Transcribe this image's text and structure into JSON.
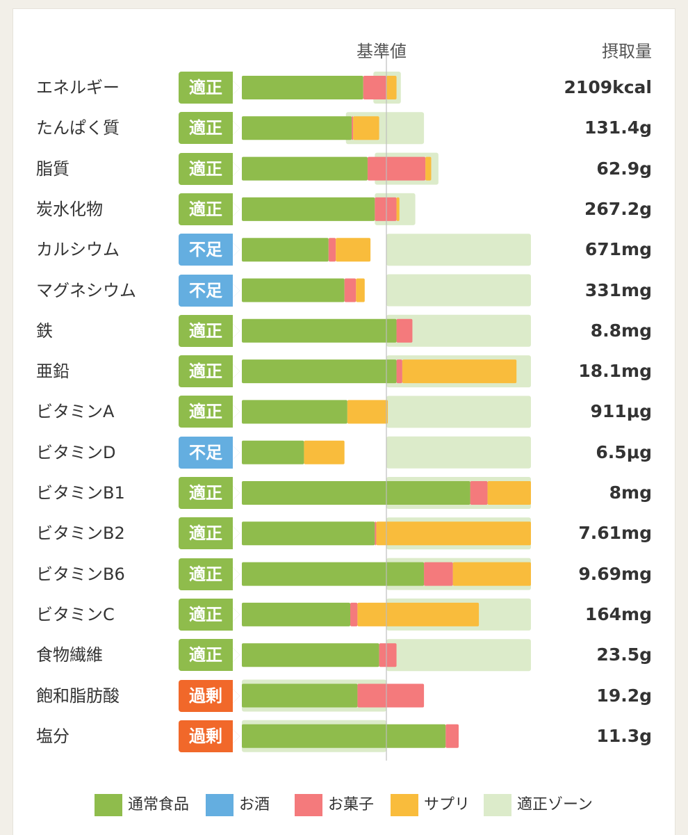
{
  "colors": {
    "normal_food": "#8fbc4c",
    "alcohol": "#64aee0",
    "snacks": "#f47a7c",
    "supplement": "#f9bc3c",
    "proper_zone": "#dcebca",
    "status_proper": "#8fbc4c",
    "status_lacking": "#64aee0",
    "status_excess": "#f1682a"
  },
  "header": {
    "base_label": "基準値",
    "intake_label": "摂取量"
  },
  "legend": [
    {
      "label": "通常食品",
      "color_key": "normal_food"
    },
    {
      "label": "お酒",
      "color_key": "alcohol"
    },
    {
      "label": "お菓子",
      "color_key": "snacks"
    },
    {
      "label": "サプリ",
      "color_key": "supplement"
    },
    {
      "label": "適正ゾーン",
      "color_key": "proper_zone"
    }
  ],
  "chart_data": {
    "type": "bar",
    "orientation": "horizontal",
    "stacked": true,
    "value_unit": "percent of reference value (基準値 = 100)",
    "axis_max": 200,
    "reference_line": 100,
    "series": [
      {
        "name": "通常食品",
        "key": "normal_food"
      },
      {
        "name": "お酒",
        "key": "alcohol"
      },
      {
        "name": "お菓子",
        "key": "snacks"
      },
      {
        "name": "サプリ",
        "key": "supplement"
      }
    ],
    "rows": [
      {
        "label": "エネルギー",
        "status": "適正",
        "status_type": "proper",
        "intake": "2109kcal",
        "values": [
          84,
          0,
          16,
          7
        ],
        "zone": [
          91,
          110
        ]
      },
      {
        "label": "たんぱく質",
        "status": "適正",
        "status_type": "proper",
        "intake": "131.4g",
        "values": [
          76,
          0,
          1,
          18
        ],
        "zone": [
          72,
          126
        ]
      },
      {
        "label": "脂質",
        "status": "適正",
        "status_type": "proper",
        "intake": "62.9g",
        "values": [
          87,
          0,
          40,
          4
        ],
        "zone": [
          92,
          136
        ]
      },
      {
        "label": "炭水化物",
        "status": "適正",
        "status_type": "proper",
        "intake": "267.2g",
        "values": [
          92,
          0,
          15,
          2
        ],
        "zone": [
          92,
          120
        ]
      },
      {
        "label": "カルシウム",
        "status": "不足",
        "status_type": "lacking",
        "intake": "671mg",
        "values": [
          60,
          0,
          5,
          24
        ],
        "zone": [
          100,
          200
        ]
      },
      {
        "label": "マグネシウム",
        "status": "不足",
        "status_type": "lacking",
        "intake": "331mg",
        "values": [
          71,
          0,
          8,
          6
        ],
        "zone": [
          100,
          200
        ]
      },
      {
        "label": "鉄",
        "status": "適正",
        "status_type": "proper",
        "intake": "8.8mg",
        "values": [
          107,
          0,
          11,
          0
        ],
        "zone": [
          100,
          200
        ]
      },
      {
        "label": "亜鉛",
        "status": "適正",
        "status_type": "proper",
        "intake": "18.1mg",
        "values": [
          107,
          0,
          4,
          79
        ],
        "zone": [
          100,
          200
        ]
      },
      {
        "label": "ビタミンA",
        "status": "適正",
        "status_type": "proper",
        "intake": "911μg",
        "values": [
          73,
          0,
          0,
          28
        ],
        "zone": [
          100,
          200
        ]
      },
      {
        "label": "ビタミンD",
        "status": "不足",
        "status_type": "lacking",
        "intake": "6.5μg",
        "values": [
          43,
          0,
          0,
          28
        ],
        "zone": [
          100,
          200
        ]
      },
      {
        "label": "ビタミンB1",
        "status": "適正",
        "status_type": "proper",
        "intake": "8mg",
        "values": [
          158,
          0,
          12,
          30
        ],
        "zone": [
          100,
          200
        ]
      },
      {
        "label": "ビタミンB2",
        "status": "適正",
        "status_type": "proper",
        "intake": "7.61mg",
        "values": [
          92,
          0,
          1,
          107
        ],
        "zone": [
          100,
          200
        ]
      },
      {
        "label": "ビタミンB6",
        "status": "適正",
        "status_type": "proper",
        "intake": "9.69mg",
        "values": [
          126,
          0,
          20,
          54
        ],
        "zone": [
          100,
          200
        ]
      },
      {
        "label": "ビタミンC",
        "status": "適正",
        "status_type": "proper",
        "intake": "164mg",
        "values": [
          75,
          0,
          5,
          84
        ],
        "zone": [
          100,
          200
        ]
      },
      {
        "label": "食物繊維",
        "status": "適正",
        "status_type": "proper",
        "intake": "23.5g",
        "values": [
          95,
          0,
          12,
          0
        ],
        "zone": [
          100,
          200
        ]
      },
      {
        "label": "飽和脂肪酸",
        "status": "過剰",
        "status_type": "excess",
        "intake": "19.2g",
        "values": [
          80,
          0,
          46,
          0
        ],
        "zone": [
          0,
          100
        ]
      },
      {
        "label": "塩分",
        "status": "過剰",
        "status_type": "excess",
        "intake": "11.3g",
        "values": [
          141,
          0,
          9,
          0
        ],
        "zone": [
          0,
          100
        ]
      }
    ]
  }
}
